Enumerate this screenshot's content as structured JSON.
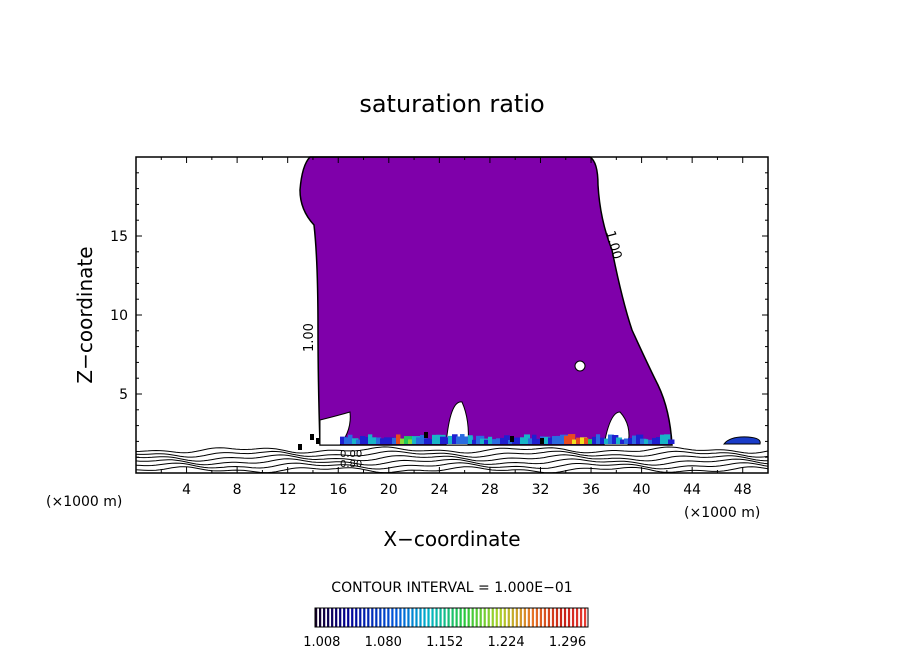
{
  "chart_data": {
    "type": "heatmap",
    "title": "saturation ratio",
    "xlabel": "X−coordinate",
    "ylabel": "Z−coordinate",
    "x_unit_left": "(×1000 m)",
    "x_unit_right": "(×1000 m)",
    "xlim": [
      0,
      50
    ],
    "ylim": [
      0,
      20
    ],
    "x_ticks": [
      4,
      8,
      12,
      16,
      20,
      24,
      28,
      32,
      36,
      40,
      44,
      48
    ],
    "y_ticks": [
      5,
      10,
      15
    ],
    "contour_labels": [
      "1.00",
      "1.00",
      "0.00",
      "0.80"
    ],
    "contour_interval_text": "CONTOUR INTERVAL = 1.000E−01",
    "colorbar": {
      "ticks": [
        1.008,
        1.08,
        1.152,
        1.224,
        1.296
      ],
      "tick_labels": [
        "1.008",
        "1.080",
        "1.152",
        "1.224",
        "1.296"
      ],
      "range": [
        1.0,
        1.32
      ]
    },
    "fill_color": "#7f00aa",
    "cloud_region": {
      "description_level": 1.0,
      "x_range_at_top": [
        13.5,
        36.5
      ],
      "x_range_at_base": [
        14.0,
        42.5
      ],
      "z_range": [
        1.5,
        20
      ]
    }
  }
}
